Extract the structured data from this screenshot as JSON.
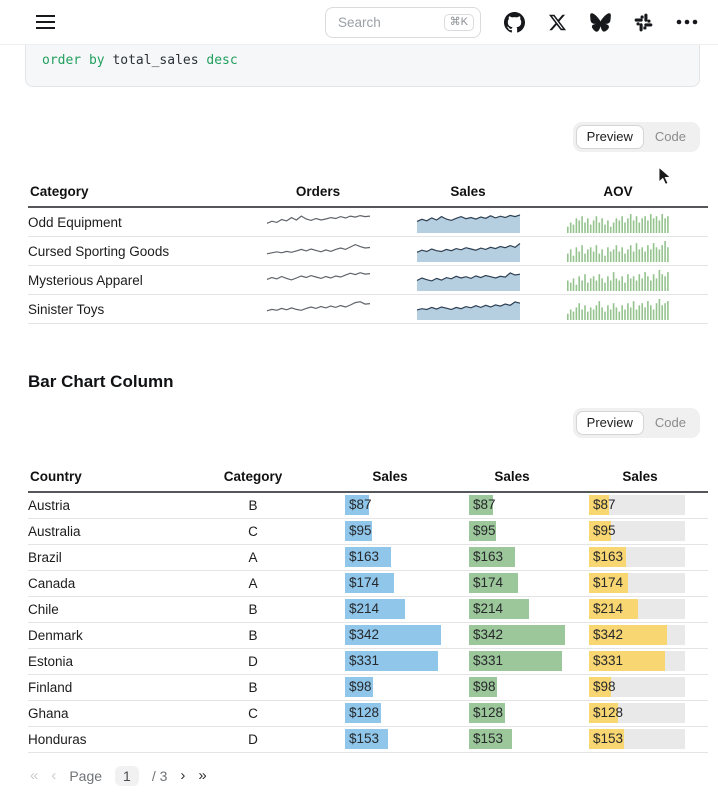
{
  "navbar": {
    "search": {
      "placeholder": "Search",
      "shortcut": "⌘K"
    },
    "icons": [
      "menu-icon",
      "github-icon",
      "x-twitter-icon",
      "bluesky-icon",
      "slack-icon",
      "more-dots-icon"
    ]
  },
  "code_block": {
    "t1": "order by",
    "t2": " total_sales ",
    "t3": "desc"
  },
  "toggles": {
    "preview_label": "Preview",
    "code_label": "Code"
  },
  "section": {
    "title": "Bar Chart Column"
  },
  "sparkline_table": {
    "headers": [
      "Category",
      "Orders",
      "Sales",
      "AOV"
    ],
    "rows": [
      {
        "category": "Odd Equipment",
        "orders": [
          3.2,
          4.1,
          3.6,
          4.8,
          4.2,
          5.6,
          4.6,
          6.2,
          5.0,
          4.4,
          5.2,
          4.6,
          5.0,
          5.6,
          5.2,
          6.0,
          5.4,
          6.2,
          5.8,
          6.4,
          6.0,
          6.2
        ],
        "sales": [
          5.5,
          6.5,
          5.8,
          7.2,
          6.2,
          7.8,
          6.6,
          6.0,
          7.0,
          7.8,
          6.8,
          7.4,
          6.6,
          7.6,
          7.0,
          8.2,
          7.2,
          8.0,
          7.4,
          8.4,
          7.8,
          8.6
        ],
        "aov": [
          3,
          5,
          4,
          7,
          6,
          8,
          5,
          7,
          4,
          6,
          8,
          5,
          7,
          4,
          6,
          3,
          5,
          7,
          6,
          8,
          5,
          7,
          9,
          6,
          8,
          5,
          7,
          8,
          6,
          9,
          7,
          8,
          6,
          9,
          7,
          8
        ]
      },
      {
        "category": "Cursed Sporting Goods",
        "orders": [
          2.6,
          3.0,
          3.4,
          3.0,
          3.6,
          3.2,
          3.8,
          4.4,
          3.8,
          4.6,
          4.0,
          3.4,
          4.2,
          3.6,
          4.4,
          5.0,
          4.4,
          5.4,
          6.4,
          5.6,
          5.0,
          5.2
        ],
        "sales": [
          4.6,
          5.6,
          5.0,
          6.2,
          5.4,
          5.0,
          6.0,
          5.4,
          6.4,
          5.8,
          6.8,
          6.2,
          5.6,
          6.6,
          6.0,
          7.0,
          6.4,
          7.4,
          6.8,
          7.8,
          7.0,
          8.8
        ],
        "aov": [
          4,
          6,
          3,
          7,
          5,
          8,
          4,
          6,
          7,
          5,
          8,
          4,
          6,
          3,
          7,
          5,
          6,
          8,
          5,
          7,
          4,
          6,
          8,
          5,
          9,
          6,
          7,
          5,
          8,
          6,
          9,
          7,
          6,
          8,
          10,
          7
        ]
      },
      {
        "category": "Mysterious Apparel",
        "orders": [
          4.0,
          4.8,
          4.2,
          5.2,
          4.4,
          3.8,
          4.6,
          5.4,
          4.8,
          5.6,
          5.0,
          4.4,
          5.2,
          4.6,
          5.4,
          5.0,
          5.8,
          6.6,
          6.0,
          6.8,
          6.2,
          6.4
        ],
        "sales": [
          5.0,
          6.2,
          5.4,
          4.8,
          6.0,
          5.2,
          6.4,
          5.8,
          7.0,
          6.2,
          6.8,
          6.0,
          7.2,
          6.4,
          7.4,
          6.8,
          6.2,
          7.0,
          6.6,
          8.6,
          7.6,
          8.0
        ],
        "aov": [
          5,
          4,
          6,
          3,
          7,
          5,
          8,
          4,
          6,
          7,
          5,
          8,
          6,
          4,
          7,
          5,
          9,
          6,
          5,
          7,
          4,
          8,
          6,
          7,
          5,
          8,
          6,
          9,
          7,
          5,
          8,
          6,
          10,
          8,
          7,
          9
        ]
      },
      {
        "category": "Sinister Toys",
        "orders": [
          3.0,
          3.6,
          3.2,
          4.0,
          3.4,
          4.2,
          3.6,
          3.2,
          4.0,
          4.6,
          4.0,
          4.8,
          4.2,
          5.0,
          4.4,
          5.2,
          4.6,
          5.4,
          6.4,
          6.8,
          5.8,
          6.0
        ],
        "sales": [
          4.8,
          5.4,
          5.0,
          6.0,
          5.2,
          6.2,
          5.6,
          5.0,
          6.0,
          5.4,
          6.4,
          5.8,
          6.8,
          6.0,
          7.0,
          6.2,
          7.2,
          6.6,
          7.6,
          7.0,
          8.6,
          8.0
        ],
        "aov": [
          3,
          5,
          4,
          6,
          8,
          5,
          7,
          4,
          6,
          5,
          7,
          9,
          6,
          4,
          7,
          5,
          8,
          6,
          4,
          7,
          5,
          8,
          6,
          9,
          5,
          7,
          8,
          6,
          9,
          7,
          5,
          8,
          10,
          7,
          8,
          9
        ]
      }
    ]
  },
  "bar_table": {
    "headers": [
      "Country",
      "Category",
      "Sales",
      "Sales",
      "Sales"
    ],
    "bar_columns": [
      {
        "name": "sales-blue",
        "color": "#8fc6ea",
        "max": 342,
        "track": false
      },
      {
        "name": "sales-green",
        "color": "#9cc79a",
        "max": 342,
        "track": false
      },
      {
        "name": "sales-yellow",
        "color": "#f8d671",
        "max": 420,
        "track": true
      }
    ],
    "rows": [
      {
        "country": "Austria",
        "category": "B",
        "value": 87,
        "label": "$87"
      },
      {
        "country": "Australia",
        "category": "C",
        "value": 95,
        "label": "$95"
      },
      {
        "country": "Brazil",
        "category": "A",
        "value": 163,
        "label": "$163"
      },
      {
        "country": "Canada",
        "category": "A",
        "value": 174,
        "label": "$174"
      },
      {
        "country": "Chile",
        "category": "B",
        "value": 214,
        "label": "$214"
      },
      {
        "country": "Denmark",
        "category": "B",
        "value": 342,
        "label": "$342"
      },
      {
        "country": "Estonia",
        "category": "D",
        "value": 331,
        "label": "$331"
      },
      {
        "country": "Finland",
        "category": "B",
        "value": 98,
        "label": "$98"
      },
      {
        "country": "Ghana",
        "category": "C",
        "value": 128,
        "label": "$128"
      },
      {
        "country": "Honduras",
        "category": "D",
        "value": 153,
        "label": "$153"
      }
    ]
  },
  "pagination": {
    "first": "«",
    "prev": "‹",
    "page_label": "Page",
    "current": "1",
    "of": "/ 3",
    "next": "›",
    "last": "»"
  },
  "colors": {
    "code_keyword_green": "#22a05f",
    "bar_blue": "#8fc6ea",
    "bar_green": "#9cc79a",
    "bar_yellow": "#f8d671",
    "bar_track_gray": "#e9e9e9",
    "spark_line_gray": "#5f6368",
    "spark_area_fill": "#b5cee0",
    "spark_area_stroke": "#2e4053",
    "spark_bars_green": "#94c38e",
    "header_rule": "#55565a"
  }
}
